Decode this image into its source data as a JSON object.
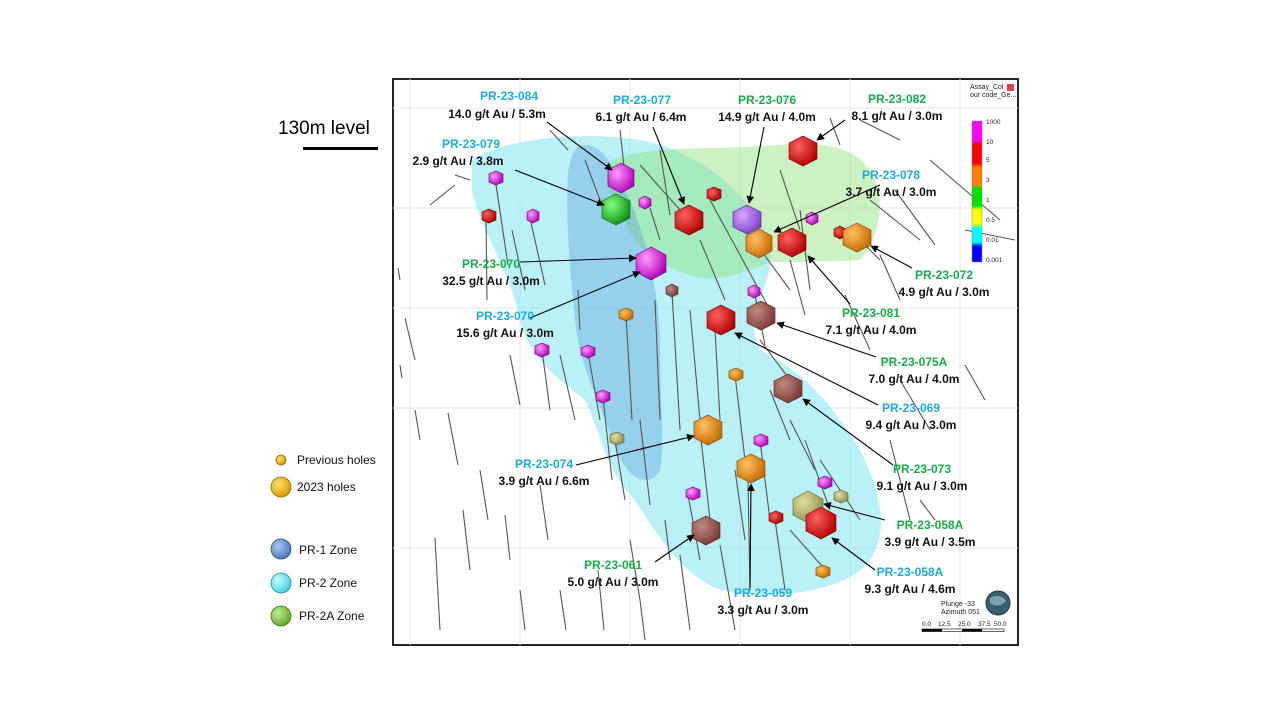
{
  "level_title": "130m level",
  "colorbar": {
    "title_line1": "Assay_Col",
    "title_line2": "our code_Ge...",
    "ticks": [
      "1000",
      "10",
      "5",
      "3",
      "1",
      "0.5",
      "0.01",
      "0.001"
    ]
  },
  "orientation": {
    "plunge": "Plunge -33",
    "azimuth": "Azimuth 051"
  },
  "map_scale": {
    "ticks": [
      "0.0",
      "12.5",
      "25.0",
      "37.5",
      "50.0"
    ]
  },
  "legend": {
    "previous_holes": "Previous holes",
    "holes_2023": "2023 holes",
    "pr1_zone": "PR-1 Zone",
    "pr2_zone": "PR-2 Zone",
    "pr2a_zone": "PR-2A Zone"
  },
  "labels": [
    {
      "hole": "PR-23-084",
      "grade": "14.0 g/t Au / 5.3m",
      "color": "#1fa8d8"
    },
    {
      "hole": "PR-23-077",
      "grade": "6.1 g/t Au / 6.4m",
      "color": "#1fa8d8"
    },
    {
      "hole": "PR-23-076",
      "grade": "14.9 g/t Au / 4.0m",
      "color": "#1aa84a"
    },
    {
      "hole": "PR-23-082",
      "grade": "8.1 g/t Au / 3.0m",
      "color": "#1aa84a"
    },
    {
      "hole": "PR-23-079",
      "grade": "2.9 g/t Au / 3.8m",
      "color": "#1fa8d8"
    },
    {
      "hole": "PR-23-078",
      "grade": "3.7 g/t Au / 3.0m",
      "color": "#1fa8d8"
    },
    {
      "hole": "PR-23-070",
      "grade": "32.5 g/t Au / 3.0m",
      "color": "#1aa84a"
    },
    {
      "hole": "PR-23-072",
      "grade": "4.9 g/t Au / 3.0m",
      "color": "#1aa84a"
    },
    {
      "hole": "PR-23-070",
      "grade": "15.6 g/t Au / 3.0m",
      "color": "#1fa8d8"
    },
    {
      "hole": "PR-23-081",
      "grade": "7.1 g/t Au / 4.0m",
      "color": "#1aa84a"
    },
    {
      "hole": "PR-23-075A",
      "grade": "7.0 g/t Au / 4.0m",
      "color": "#1aa84a"
    },
    {
      "hole": "PR-23-069",
      "grade": "9.4 g/t Au / 3.0m",
      "color": "#1fa8d8"
    },
    {
      "hole": "PR-23-074",
      "grade": "3.9 g/t Au / 6.6m",
      "color": "#1fa8d8"
    },
    {
      "hole": "PR-23-073",
      "grade": "9.1 g/t Au / 3.0m",
      "color": "#1aa84a"
    },
    {
      "hole": "PR-23-058A",
      "grade": "3.9 g/t Au / 3.5m",
      "color": "#1aa84a"
    },
    {
      "hole": "PR-23-061",
      "grade": "5.0 g/t Au / 3.0m",
      "color": "#1aa84a"
    },
    {
      "hole": "PR-23-058A",
      "grade": "9.3 g/t Au / 4.6m",
      "color": "#1fa8d8"
    },
    {
      "hole": "PR-23-059",
      "grade": "3.3 g/t Au / 3.0m",
      "color": "#1fa8d8"
    }
  ],
  "colors": {
    "pr1_zone": "#6f9fd8",
    "pr2_zone": "#7fe6f0",
    "pr2a_zone": "#8ccc55",
    "previous_holes": "#f0b400",
    "holes_2023": "#f0b400"
  }
}
